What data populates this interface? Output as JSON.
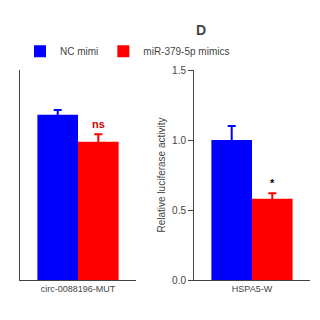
{
  "chart_data": [
    {
      "type": "bar",
      "categories": [
        "circ-0088196-MUT"
      ],
      "series": [
        {
          "name": "NC mimi",
          "color": "#0000FF",
          "values": [
            1.22
          ],
          "errors": [
            0.035
          ]
        },
        {
          "name": "miR-379-5p mimics",
          "color": "#FF0000",
          "values": [
            1.02
          ],
          "errors": [
            0.055
          ]
        }
      ],
      "ylim": [
        0,
        1.55
      ],
      "yticks": [],
      "tick_labels": "x",
      "grid": false,
      "legend": "top",
      "annotations": [
        {
          "text": "ns",
          "category": "circ-0088196-MUT",
          "series": "miR-379-5p mimics",
          "color": "#CC0000"
        }
      ]
    },
    {
      "type": "bar",
      "title": "D",
      "ylabel": "Relative luciferase activity",
      "categories": [
        "HSPA5-W"
      ],
      "series": [
        {
          "name": "NC mimi",
          "color": "#0000FF",
          "values": [
            1.0
          ],
          "errors": [
            0.1
          ]
        },
        {
          "name": "miR-379-5p mimics",
          "color": "#FF0000",
          "values": [
            0.58
          ],
          "errors": [
            0.04
          ]
        }
      ],
      "ylim": [
        0,
        1.5
      ],
      "yticks": [
        {
          "value": 0,
          "label": "0.0"
        },
        0.5,
        {
          "value": 1,
          "label": "1.0"
        },
        1.5
      ],
      "grid": false,
      "legend": "top",
      "annotations": [
        {
          "text": "*",
          "category": "HSPA5-W",
          "series": "miR-379-5p mimics",
          "color": "black"
        }
      ]
    }
  ]
}
